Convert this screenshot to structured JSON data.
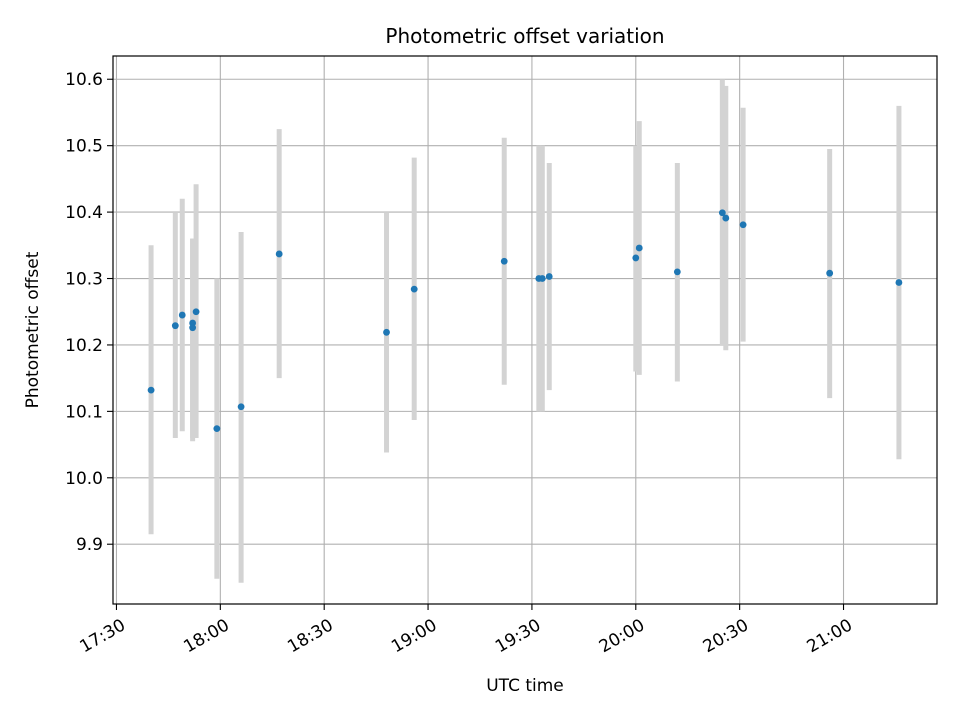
{
  "chart_data": {
    "type": "scatter",
    "title": "Photometric offset variation",
    "xlabel": "UTC time",
    "ylabel": "Photometric offset",
    "grid": true,
    "xlim": [
      "17:29",
      "21:27"
    ],
    "ylim": [
      9.81,
      10.635
    ],
    "x_ticks": [
      "17:30",
      "18:00",
      "18:30",
      "19:00",
      "19:30",
      "20:00",
      "20:30",
      "21:00"
    ],
    "y_ticks": [
      9.9,
      10.0,
      10.1,
      10.2,
      10.3,
      10.4,
      10.5,
      10.6
    ],
    "colors": {
      "points": "#1f77b4",
      "error_bars": "#d3d3d3",
      "grid": "#b0b0b0"
    },
    "series": [
      {
        "points": [
          {
            "time": "17:40",
            "value": 10.132,
            "lower": 9.915,
            "upper": 10.35
          },
          {
            "time": "17:47",
            "value": 10.229,
            "lower": 10.06,
            "upper": 10.4
          },
          {
            "time": "17:49",
            "value": 10.245,
            "lower": 10.07,
            "upper": 10.42
          },
          {
            "time": "17:52",
            "value": 10.233,
            "lower": 10.06,
            "upper": 10.36
          },
          {
            "time": "17:52",
            "value": 10.226,
            "lower": 10.055,
            "upper": 10.36
          },
          {
            "time": "17:53",
            "value": 10.25,
            "lower": 10.06,
            "upper": 10.442
          },
          {
            "time": "17:59",
            "value": 10.074,
            "lower": 9.848,
            "upper": 10.3
          },
          {
            "time": "18:06",
            "value": 10.107,
            "lower": 9.842,
            "upper": 10.37
          },
          {
            "time": "18:17",
            "value": 10.337,
            "lower": 10.15,
            "upper": 10.525
          },
          {
            "time": "18:48",
            "value": 10.219,
            "lower": 10.038,
            "upper": 10.4
          },
          {
            "time": "18:56",
            "value": 10.284,
            "lower": 10.087,
            "upper": 10.482
          },
          {
            "time": "19:22",
            "value": 10.326,
            "lower": 10.14,
            "upper": 10.512
          },
          {
            "time": "19:32",
            "value": 10.3,
            "lower": 10.1,
            "upper": 10.5
          },
          {
            "time": "19:33",
            "value": 10.3,
            "lower": 10.1,
            "upper": 10.5
          },
          {
            "time": "19:35",
            "value": 10.303,
            "lower": 10.132,
            "upper": 10.474
          },
          {
            "time": "20:00",
            "value": 10.331,
            "lower": 10.16,
            "upper": 10.5
          },
          {
            "time": "20:01",
            "value": 10.346,
            "lower": 10.155,
            "upper": 10.537
          },
          {
            "time": "20:12",
            "value": 10.31,
            "lower": 10.145,
            "upper": 10.474
          },
          {
            "time": "20:25",
            "value": 10.399,
            "lower": 10.2,
            "upper": 10.6
          },
          {
            "time": "20:26",
            "value": 10.391,
            "lower": 10.192,
            "upper": 10.59
          },
          {
            "time": "20:31",
            "value": 10.381,
            "lower": 10.205,
            "upper": 10.557
          },
          {
            "time": "20:56",
            "value": 10.308,
            "lower": 10.12,
            "upper": 10.495
          },
          {
            "time": "21:16",
            "value": 10.294,
            "lower": 10.028,
            "upper": 10.56
          }
        ]
      }
    ]
  }
}
